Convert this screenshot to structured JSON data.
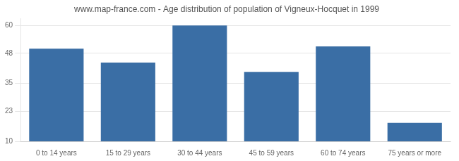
{
  "chart_data": {
    "type": "bar",
    "title": "www.map-france.com - Age distribution of population of Vigneux-Hocquet in 1999",
    "categories": [
      "0 to 14 years",
      "15 to 29 years",
      "30 to 44 years",
      "45 to 59 years",
      "60 to 74 years",
      "75 years or more"
    ],
    "values": [
      50,
      44,
      60,
      40,
      51,
      18
    ],
    "color": "#3a6ea5",
    "ylim": [
      10,
      63
    ],
    "yticks": [
      10,
      23,
      35,
      48,
      60
    ],
    "grid": true
  }
}
